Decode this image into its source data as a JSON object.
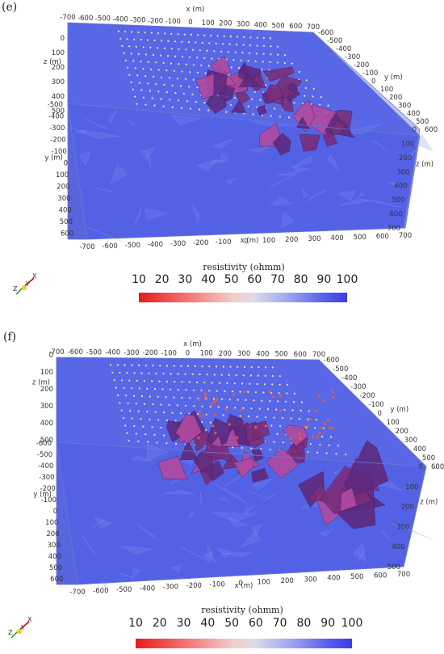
{
  "panels": [
    {
      "letter": "(e)",
      "x_axis_label": "x (m)",
      "y_axis_label": "y (m)",
      "z_axis_label": "z (m)",
      "top_x_ticks": [
        "-700",
        "-600",
        "-500",
        "-400",
        "-300",
        "-200",
        "-100",
        "0",
        "100",
        "200",
        "300",
        "400",
        "500",
        "600",
        "700"
      ],
      "bottom_x_ticks": [
        "-700",
        "-600",
        "-500",
        "-400",
        "-300",
        "-200",
        "-100",
        "0",
        "100",
        "200",
        "300",
        "400",
        "500",
        "600",
        "700"
      ],
      "left_z_ticks": [
        "0",
        "100",
        "200",
        "300",
        "400",
        "500"
      ],
      "left_y_ticks": [
        "-500",
        "-400",
        "-300",
        "-200",
        "-100",
        "0",
        "100",
        "200",
        "300",
        "400",
        "500",
        "600"
      ],
      "right_y_ticks": [
        "-600",
        "-500",
        "-400",
        "-300",
        "-200",
        "-100",
        "0",
        "100",
        "200",
        "300",
        "400",
        "500",
        "600"
      ],
      "right_z_ticks": [
        "0",
        "100",
        "200",
        "300",
        "400",
        "500",
        "600",
        "700"
      ],
      "colorbar": {
        "title": "resistivity (ohmm)",
        "ticks": [
          "10",
          "20",
          "30",
          "40",
          "50",
          "60",
          "70",
          "80",
          "90",
          "100"
        ],
        "range": [
          10,
          100
        ]
      }
    },
    {
      "letter": "(f)",
      "x_axis_label": "x (m)",
      "y_axis_label": "y (m)",
      "z_axis_label": "z (m)",
      "top_x_ticks": [
        "-700",
        "-600",
        "-500",
        "-400",
        "-300",
        "-200",
        "-100",
        "0",
        "100",
        "200",
        "300",
        "400",
        "500",
        "600",
        "700"
      ],
      "bottom_x_ticks": [
        "-700",
        "-600",
        "-500",
        "-400",
        "-300",
        "-200",
        "-100",
        "0",
        "100",
        "200",
        "300",
        "400",
        "500",
        "600",
        "700"
      ],
      "left_z_ticks": [
        "0",
        "100",
        "200",
        "300",
        "400",
        "500"
      ],
      "left_y_ticks": [
        "-600",
        "-500",
        "-400",
        "-300",
        "-200",
        "-100",
        "0",
        "100",
        "200",
        "300",
        "400",
        "500",
        "600"
      ],
      "right_y_ticks": [
        "-600",
        "-500",
        "-400",
        "-300",
        "-200",
        "-100",
        "0",
        "100",
        "200",
        "300",
        "400",
        "500",
        "600"
      ],
      "right_z_ticks": [
        "0",
        "100",
        "200",
        "300",
        "400",
        "500"
      ],
      "colorbar": {
        "title": "resistivity (ohmm)",
        "ticks": [
          "10",
          "20",
          "30",
          "40",
          "50",
          "60",
          "70",
          "80",
          "90",
          "100"
        ],
        "range": [
          10,
          100
        ]
      }
    }
  ],
  "triad_labels": {
    "x": "X",
    "y": "Y",
    "z": "Z"
  },
  "colors": {
    "background_volume": "#4a5ae4",
    "box_edge": "#6c78d0",
    "anomaly": "#7a2f7a",
    "anomaly_highlight": "#b04aa0",
    "electrode": "#f0e6a0",
    "colormap_low": "#e41c1c",
    "colormap_mid": "#dcdce8",
    "colormap_high": "#3c3ce6"
  }
}
